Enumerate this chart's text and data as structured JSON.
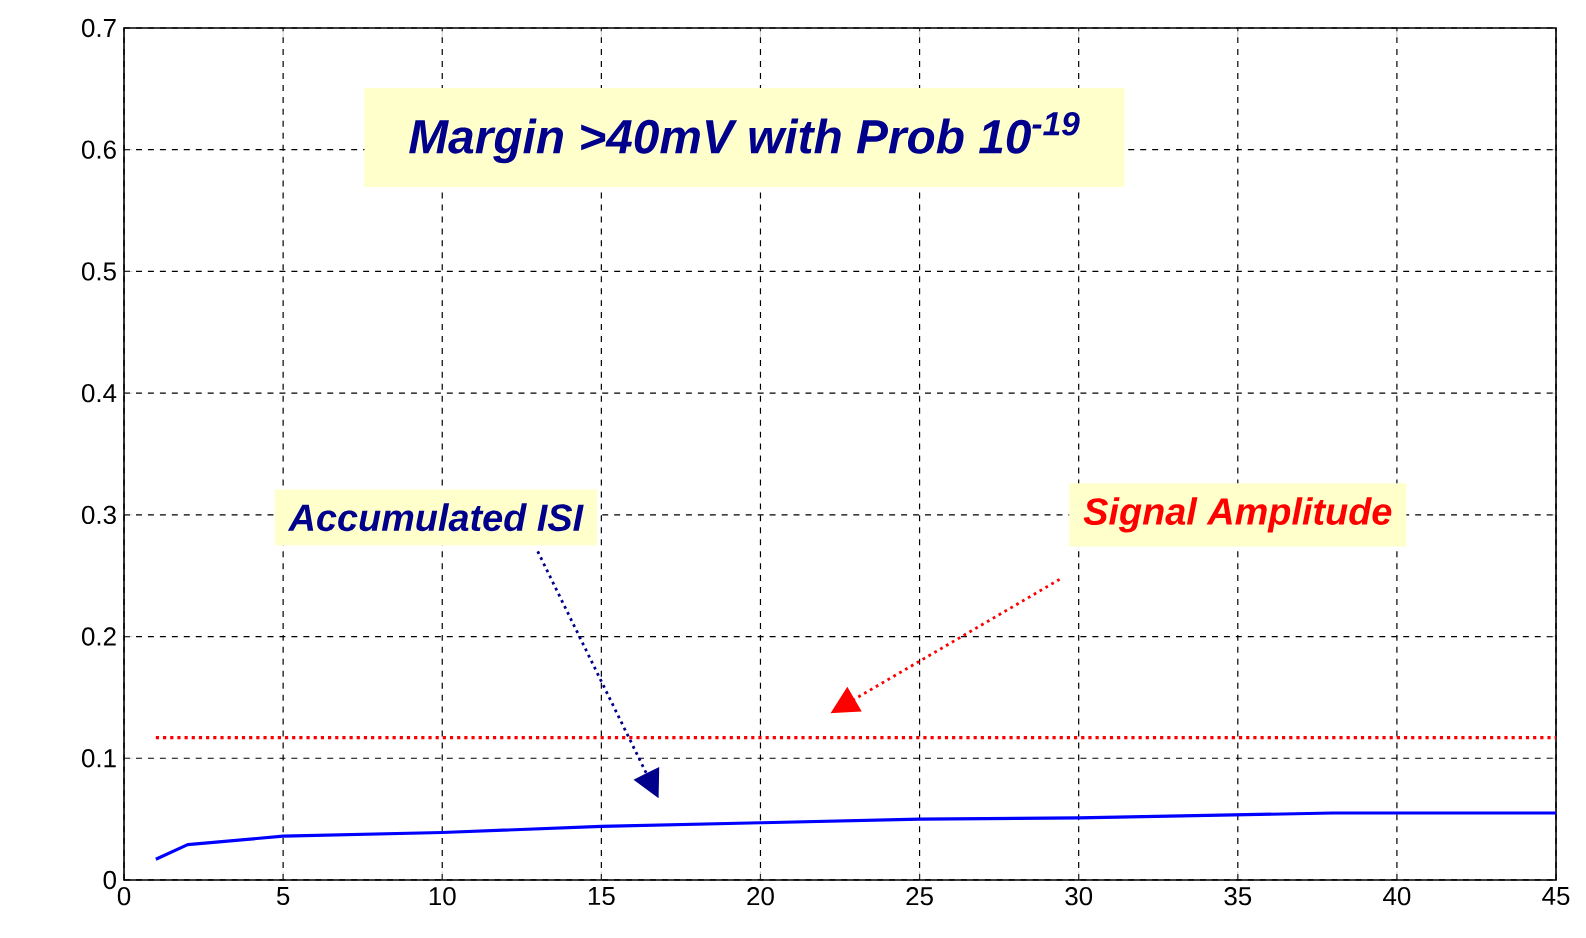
{
  "chart_data": {
    "type": "line",
    "x": [
      1,
      2,
      5,
      10,
      15,
      20,
      25,
      30,
      38,
      45
    ],
    "series": [
      {
        "color": "#0000ff",
        "values": [
          0.017,
          0.029,
          0.036,
          0.039,
          0.044,
          0.047,
          0.05,
          0.051,
          0.055,
          0.055
        ]
      }
    ],
    "xlim": [
      0,
      45
    ],
    "ylim": [
      0,
      0.7
    ],
    "xticks": [
      0,
      5,
      10,
      15,
      20,
      25,
      30,
      35,
      40,
      45
    ],
    "yticks": [
      0,
      0.1,
      0.2,
      0.3,
      0.4,
      0.5,
      0.6,
      0.7
    ],
    "grid": true,
    "ref_lines": [
      {
        "axis": "y",
        "value": 0.117,
        "label": "Signal Amplitude",
        "color": "#ff0000",
        "line_style": "dotted"
      }
    ],
    "annotations": [
      "Margin >40mV with Prob 10$^{-19}$",
      "Accumulated ISI"
    ]
  }
}
